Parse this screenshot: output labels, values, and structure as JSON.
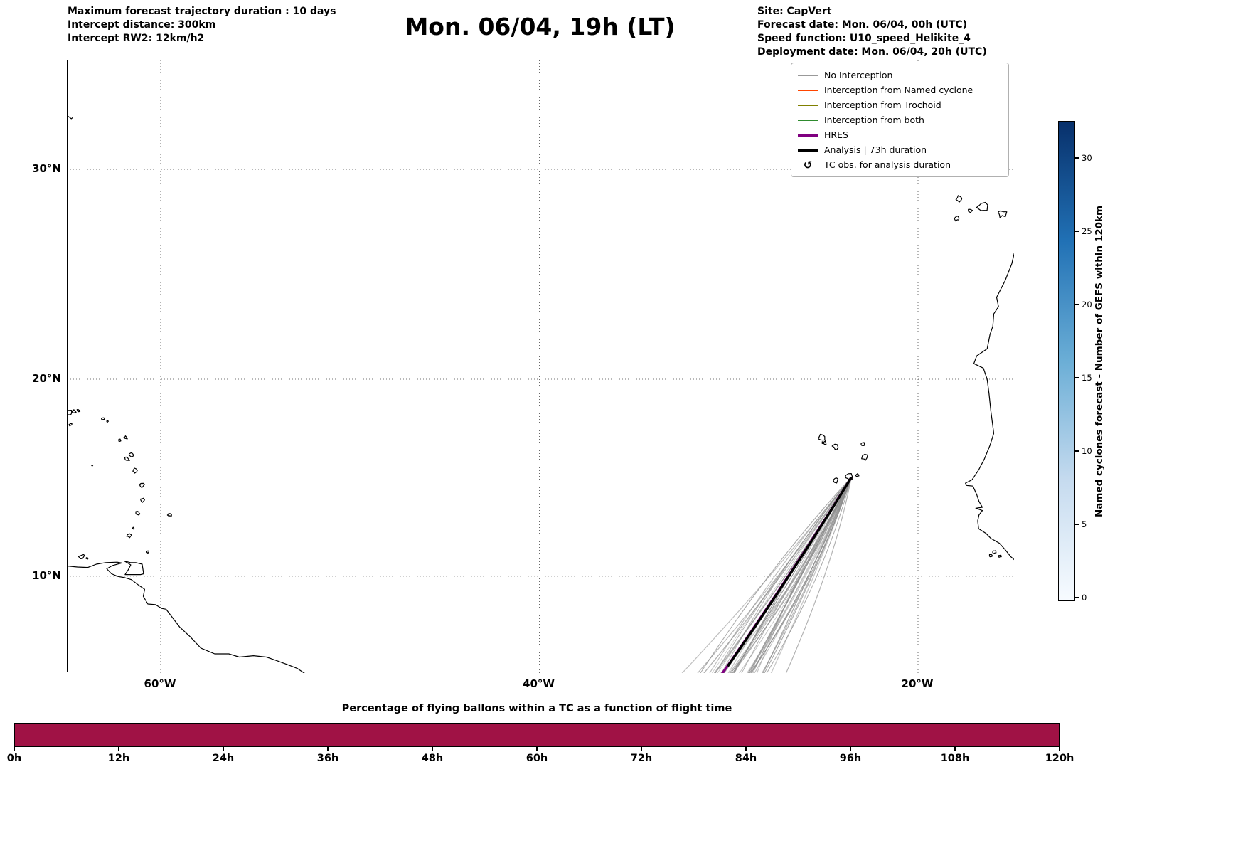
{
  "header": {
    "left_lines": [
      "Maximum forecast trajectory duration : 10 days",
      "Intercept distance: 300km",
      "Intercept RW2: 12km/h2"
    ],
    "title": "Mon. 06/04, 19h (LT)",
    "right_lines": [
      "Site: CapVert",
      "Forecast date: Mon. 06/04, 00h (UTC)",
      "Speed function: U10_speed_Helikite_4",
      "Deployment date: Mon. 06/04, 20h (UTC)"
    ]
  },
  "map_panel": {
    "lat_ticks": [
      {
        "label": "30°N",
        "lat": 30
      },
      {
        "label": "20°N",
        "lat": 20
      },
      {
        "label": "10°N",
        "lat": 10
      }
    ],
    "lon_ticks": [
      {
        "label": "60°W",
        "lon": -60
      },
      {
        "label": "40°W",
        "lon": -40
      },
      {
        "label": "20°W",
        "lon": -20
      }
    ],
    "legend_items": [
      {
        "label": "No Interception",
        "color": "#999999",
        "lw": 2
      },
      {
        "label": "Interception from Named cyclone",
        "color": "#ff4500",
        "lw": 2
      },
      {
        "label": "Interception from Trochoid",
        "color": "#808000",
        "lw": 2
      },
      {
        "label": "Interception from both",
        "color": "#2e8b2e",
        "lw": 2
      },
      {
        "label": "HRES",
        "color": "#800080",
        "lw": 4
      },
      {
        "label": "Analysis | 73h duration",
        "color": "#000000",
        "lw": 4
      },
      {
        "label": "TC obs. for analysis duration",
        "marker": "↺"
      }
    ]
  },
  "colorbar": {
    "label": "Named cyclones forecast - Number of GEFS within 120km",
    "ticks": [
      0,
      5,
      10,
      15,
      20,
      25,
      30
    ],
    "vmax": 32.5,
    "colors": [
      "#f7fbff",
      "#c6dbef",
      "#6baed6",
      "#2171b5",
      "#08306b"
    ]
  },
  "bottom_chart": {
    "title": "Percentage of flying ballons within a TC as a function of flight time",
    "tick_labels": [
      "0h",
      "12h",
      "24h",
      "36h",
      "48h",
      "60h",
      "72h",
      "84h",
      "96h",
      "108h",
      "120h"
    ],
    "bar_color": "#a01245"
  },
  "chart_data": {
    "type": "line",
    "title": "Mon. 06/04, 19h (LT)",
    "map": {
      "projection": "mercator",
      "extent_lon": [
        -64.9,
        -14.9
      ],
      "extent_lat": [
        4.9,
        34.7
      ],
      "gridlines": "dotted"
    },
    "deployment_site": {
      "name": "CapVert",
      "lon": -23.52,
      "lat": 15.08
    },
    "trajectories": {
      "ensemble": {
        "label": "No Interception",
        "count": 40,
        "color": "#8c8c8c",
        "start_lonlat": [
          -23.52,
          15.08
        ],
        "end_lat_range": [
          4.3,
          4.6
        ],
        "end_lon_range": [
          -33.6,
          -27.0
        ]
      },
      "hres": {
        "label": "HRES",
        "color": "#800080",
        "linewidth": 3.4,
        "start_lonlat": [
          -23.52,
          15.08
        ],
        "end_lonlat": [
          -30.7,
          4.4
        ]
      },
      "analysis": {
        "label": "Analysis | 73h duration",
        "color": "#000000",
        "linewidth": 3.4,
        "start_lonlat": [
          -23.52,
          15.08
        ],
        "end_lonlat": [
          -30.05,
          5.3
        ]
      }
    },
    "bottom_bar": {
      "type": "bar",
      "x_hours_range": [
        0,
        120
      ],
      "value_percent": 100
    },
    "geo": {
      "africa_coast": [
        [
          -14.92,
          26.1
        ],
        [
          -15.05,
          25.6
        ],
        [
          -15.4,
          24.8
        ],
        [
          -15.85,
          24.0
        ],
        [
          -15.75,
          23.55
        ],
        [
          -16.0,
          23.2
        ],
        [
          -16.05,
          22.6
        ],
        [
          -16.2,
          22.2
        ],
        [
          -16.35,
          21.5
        ],
        [
          -16.9,
          21.15
        ],
        [
          -17.05,
          20.77
        ],
        [
          -16.55,
          20.55
        ],
        [
          -16.35,
          20.0
        ],
        [
          -16.25,
          19.3
        ],
        [
          -16.15,
          18.4
        ],
        [
          -16.0,
          17.3
        ],
        [
          -16.2,
          16.7
        ],
        [
          -16.5,
          16.0
        ],
        [
          -16.8,
          15.45
        ],
        [
          -17.15,
          14.95
        ],
        [
          -17.5,
          14.78
        ],
        [
          -17.42,
          14.66
        ],
        [
          -17.1,
          14.63
        ],
        [
          -16.9,
          14.2
        ],
        [
          -16.78,
          13.85
        ],
        [
          -16.6,
          13.55
        ],
        [
          -16.95,
          13.5
        ],
        [
          -16.6,
          13.38
        ],
        [
          -16.78,
          13.15
        ],
        [
          -16.85,
          12.85
        ],
        [
          -16.8,
          12.45
        ],
        [
          -16.4,
          12.2
        ],
        [
          -16.15,
          11.95
        ],
        [
          -15.7,
          11.7
        ],
        [
          -15.38,
          11.35
        ],
        [
          -15.1,
          11.0
        ],
        [
          -14.92,
          10.85
        ]
      ],
      "south_america_coast": [
        [
          -64.92,
          10.52
        ],
        [
          -64.4,
          10.47
        ],
        [
          -63.85,
          10.45
        ],
        [
          -63.4,
          10.62
        ],
        [
          -62.9,
          10.7
        ],
        [
          -62.3,
          10.72
        ],
        [
          -62.05,
          10.68
        ],
        [
          -62.55,
          10.55
        ],
        [
          -62.85,
          10.38
        ],
        [
          -62.6,
          10.12
        ],
        [
          -62.25,
          9.98
        ],
        [
          -61.9,
          9.92
        ],
        [
          -61.55,
          9.82
        ],
        [
          -61.15,
          9.52
        ],
        [
          -60.85,
          9.32
        ],
        [
          -60.92,
          8.95
        ],
        [
          -60.68,
          8.55
        ],
        [
          -60.28,
          8.52
        ],
        [
          -59.95,
          8.32
        ],
        [
          -59.72,
          8.28
        ],
        [
          -59.0,
          7.35
        ],
        [
          -58.45,
          6.85
        ],
        [
          -57.88,
          6.25
        ],
        [
          -57.15,
          5.95
        ],
        [
          -56.4,
          5.95
        ],
        [
          -55.85,
          5.78
        ],
        [
          -55.1,
          5.85
        ],
        [
          -54.42,
          5.78
        ],
        [
          -53.95,
          5.62
        ],
        [
          -53.3,
          5.38
        ],
        [
          -52.78,
          5.18
        ],
        [
          -52.3,
          4.86
        ]
      ],
      "trinidad": [
        [
          -61.88,
          10.08
        ],
        [
          -61.05,
          10.08
        ],
        [
          -60.9,
          10.12
        ],
        [
          -60.98,
          10.62
        ],
        [
          -61.32,
          10.7
        ],
        [
          -61.6,
          10.7
        ],
        [
          -61.92,
          10.78
        ],
        [
          -61.58,
          10.58
        ],
        [
          -61.72,
          10.32
        ],
        [
          -61.88,
          10.08
        ]
      ],
      "bermuda": [
        [
          -64.88,
          32.38
        ],
        [
          -64.72,
          32.28
        ],
        [
          -64.65,
          32.33
        ]
      ],
      "island_blobs": {
        "canary": [
          [
            -13.55,
            29.05,
            0.24
          ],
          [
            -14.0,
            28.35,
            0.34
          ],
          [
            -15.58,
            27.96,
            0.2
          ],
          [
            -16.6,
            28.3,
            0.28
          ],
          [
            -17.85,
            28.65,
            0.14
          ],
          [
            -17.25,
            28.08,
            0.1
          ],
          [
            -17.95,
            27.73,
            0.11
          ]
        ],
        "cape_verde": [
          [
            -25.08,
            17.08,
            0.2
          ],
          [
            -24.95,
            16.82,
            0.1
          ],
          [
            -24.32,
            16.6,
            0.16
          ],
          [
            -22.92,
            16.75,
            0.11
          ],
          [
            -22.8,
            16.08,
            0.16
          ],
          [
            -23.6,
            15.1,
            0.2
          ],
          [
            -24.38,
            14.92,
            0.13
          ],
          [
            -23.18,
            15.18,
            0.08
          ]
        ],
        "antilles": [
          [
            -64.85,
            18.33,
            0.16
          ],
          [
            -64.58,
            18.4,
            0.09
          ],
          [
            -64.35,
            18.44,
            0.07
          ],
          [
            -64.75,
            17.75,
            0.08
          ],
          [
            -63.05,
            18.04,
            0.06
          ],
          [
            -62.82,
            17.9,
            0.05
          ],
          [
            -62.18,
            16.95,
            0.06
          ],
          [
            -61.85,
            17.08,
            0.09
          ],
          [
            -61.78,
            16.0,
            0.13
          ],
          [
            -61.55,
            16.22,
            0.11
          ],
          [
            -61.37,
            15.42,
            0.12
          ],
          [
            -61.02,
            14.66,
            0.13
          ],
          [
            -60.97,
            13.9,
            0.11
          ],
          [
            -61.2,
            13.26,
            0.1
          ],
          [
            -61.45,
            12.47,
            0.05
          ],
          [
            -61.67,
            12.1,
            0.1
          ],
          [
            -59.54,
            13.16,
            0.1
          ],
          [
            -60.68,
            11.25,
            0.08
          ],
          [
            -64.17,
            11.02,
            0.13
          ],
          [
            -63.88,
            10.92,
            0.05
          ],
          [
            -63.62,
            15.68,
            0.03
          ]
        ],
        "bijagos": [
          [
            -15.95,
            11.25,
            0.1
          ],
          [
            -16.15,
            11.08,
            0.08
          ],
          [
            -15.68,
            11.03,
            0.07
          ]
        ]
      }
    }
  }
}
